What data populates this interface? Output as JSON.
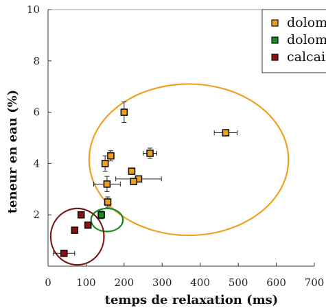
{
  "chart_data": {
    "type": "scatter",
    "xlabel": "temps de relaxation (ms)",
    "ylabel": "teneur en eau (%)",
    "xlim": [
      0,
      700
    ],
    "ylim": [
      0,
      10
    ],
    "xticks": [
      0,
      100,
      200,
      300,
      400,
      500,
      600,
      700
    ],
    "yticks": [
      2,
      4,
      6,
      8,
      10
    ],
    "grid": false,
    "legend_position": "top-right",
    "series": [
      {
        "name": "dolomie",
        "color": "#F0A020",
        "points": [
          {
            "x": 200,
            "y": 6.0,
            "yerr": 0.4
          },
          {
            "x": 467,
            "y": 5.2,
            "xerr": 30
          },
          {
            "x": 268,
            "y": 4.4,
            "xerr": 18,
            "yerr": 0.2
          },
          {
            "x": 165,
            "y": 4.3,
            "yerr": 0.2
          },
          {
            "x": 150,
            "y": 4.0,
            "xerr": 5,
            "yerr": 0.3
          },
          {
            "x": 220,
            "y": 3.7
          },
          {
            "x": 238,
            "y": 3.4,
            "xerr": 60
          },
          {
            "x": 225,
            "y": 3.3,
            "xerr": 8
          },
          {
            "x": 155,
            "y": 3.2,
            "xerr": 35,
            "yerr": 0.3
          },
          {
            "x": 157,
            "y": 2.5,
            "yerr": 0.2
          }
        ]
      },
      {
        "name": "dolomie",
        "color": "#1A8A1A",
        "points": [
          {
            "x": 140,
            "y": 2.0,
            "yerr": 0.15
          }
        ]
      },
      {
        "name": "calcaire",
        "color": "#8B1010",
        "points": [
          {
            "x": 87,
            "y": 2.0
          },
          {
            "x": 105,
            "y": 1.6
          },
          {
            "x": 70,
            "y": 1.4
          },
          {
            "x": 42,
            "y": 0.5,
            "xerr": 28
          }
        ]
      }
    ],
    "ellipses": [
      {
        "color": "#F0A020",
        "cx": 370,
        "cy": 4.15,
        "rx": 262,
        "ry": 2.95
      },
      {
        "color": "#1A8A1A",
        "cx": 155,
        "cy": 1.8,
        "rx": 42,
        "ry": 0.45
      },
      {
        "color": "#7A1818",
        "cx": 77,
        "cy": 1.15,
        "rx": 70,
        "ry": 1.1
      }
    ]
  }
}
